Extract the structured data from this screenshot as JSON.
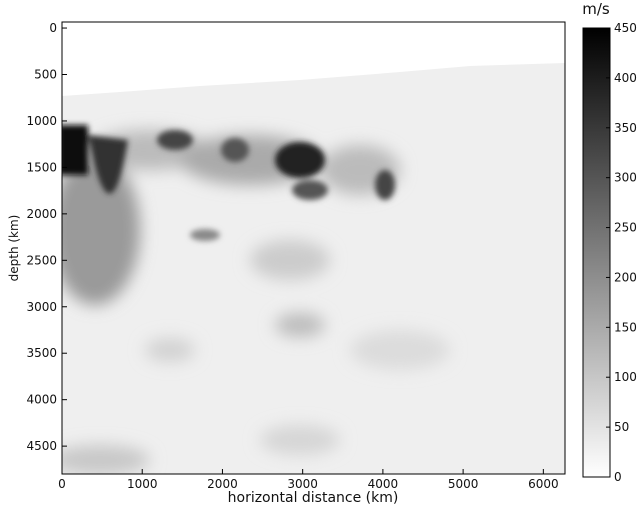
{
  "chart_data": {
    "type": "image",
    "x_label": "horizontal distance (km)",
    "y_label": "depth (km)",
    "xlim": [
      0,
      6270
    ],
    "xticks": [
      0,
      1000,
      2000,
      3000,
      4000,
      5000,
      6000
    ],
    "ylim": [
      -65,
      4800
    ],
    "yticks": [
      0,
      500,
      1000,
      1500,
      2000,
      2500,
      3000,
      3500,
      4000,
      4500
    ],
    "colorbar": {
      "label": "m/s",
      "lim": [
        0,
        450
      ],
      "ticks": [
        0,
        50,
        100,
        150,
        200,
        250,
        300,
        350,
        400,
        450
      ],
      "colors": [
        "#ffffff",
        "#000000"
      ]
    }
  }
}
